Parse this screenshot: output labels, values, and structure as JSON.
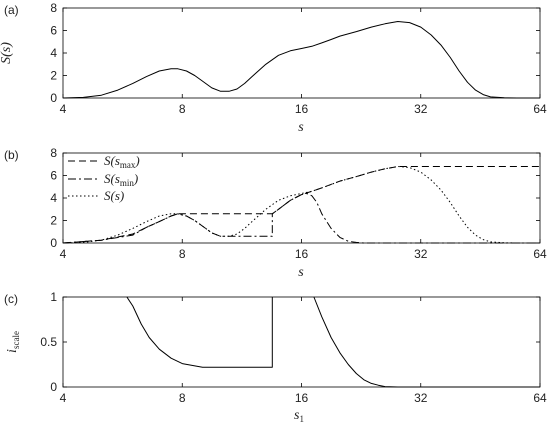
{
  "chart_data": [
    {
      "type": "line",
      "panel_label": "(a)",
      "xscale": "log2",
      "xlim": [
        4,
        64
      ],
      "ylim": [
        0,
        8
      ],
      "xticks": [
        "4",
        "8",
        "16",
        "32",
        "64"
      ],
      "yticks": [
        "0",
        "2",
        "4",
        "6",
        "8"
      ],
      "xlabel": "s",
      "ylabel": "S(s)",
      "series": [
        {
          "style": "solid",
          "x": [
            4,
            4.5,
            5,
            5.5,
            6,
            6.5,
            7,
            7.5,
            7.8,
            8.2,
            8.6,
            9,
            9.5,
            10,
            10.5,
            11,
            11.5,
            12,
            13,
            14,
            15,
            16,
            17,
            18,
            19,
            20,
            22,
            24,
            26,
            28,
            30,
            32,
            34,
            36,
            38,
            40,
            42,
            44,
            46,
            48,
            52,
            56,
            60,
            64
          ],
          "y": [
            0,
            0.05,
            0.25,
            0.7,
            1.3,
            1.9,
            2.4,
            2.6,
            2.6,
            2.4,
            2.0,
            1.5,
            0.9,
            0.6,
            0.6,
            0.8,
            1.3,
            1.9,
            3.0,
            3.8,
            4.2,
            4.4,
            4.6,
            4.9,
            5.2,
            5.5,
            5.9,
            6.3,
            6.6,
            6.8,
            6.7,
            6.3,
            5.6,
            4.7,
            3.6,
            2.4,
            1.4,
            0.7,
            0.3,
            0.1,
            0.02,
            0,
            0,
            0
          ]
        }
      ]
    },
    {
      "type": "line",
      "panel_label": "(b)",
      "xscale": "log2",
      "xlim": [
        4,
        64
      ],
      "ylim": [
        0,
        8
      ],
      "xticks": [
        "4",
        "8",
        "16",
        "32",
        "64"
      ],
      "yticks": [
        "0",
        "2",
        "4",
        "6",
        "8"
      ],
      "xlabel": "s",
      "ylabel": "",
      "legend_position": "top-left",
      "series": [
        {
          "name": "S(s_max)",
          "legend_main": "S(s",
          "legend_sub": "max",
          "style": "dashed",
          "x": [
            4,
            5,
            6,
            6.5,
            7,
            7.5,
            7.8,
            13.5,
            14,
            15,
            16,
            17,
            18,
            20,
            22,
            24,
            26,
            28,
            64
          ],
          "y": [
            0,
            0.25,
            0.8,
            1.4,
            1.9,
            2.4,
            2.6,
            2.6,
            3.0,
            3.8,
            4.3,
            4.6,
            4.9,
            5.5,
            5.9,
            6.3,
            6.6,
            6.8,
            6.8
          ]
        },
        {
          "name": "S(s_min)",
          "legend_main": "S(s",
          "legend_sub": "min",
          "style": "dashdot",
          "x": [
            4,
            5,
            6,
            6.5,
            7,
            7.5,
            7.8,
            8.2,
            8.6,
            9,
            9.5,
            10,
            10.5,
            11,
            11.5,
            12,
            13,
            13.5,
            13.5,
            14,
            15,
            16,
            16.5,
            17,
            17.5,
            18,
            19,
            20,
            21,
            22,
            23,
            24,
            64
          ],
          "y": [
            0,
            0.25,
            0.7,
            1.4,
            1.9,
            2.4,
            2.6,
            2.4,
            2.0,
            1.5,
            0.9,
            0.6,
            0.6,
            0.6,
            0.6,
            0.6,
            0.6,
            0.6,
            2.6,
            3.0,
            3.8,
            4.3,
            4.4,
            4.2,
            3.6,
            2.6,
            1.3,
            0.5,
            0.15,
            0.05,
            0,
            0,
            0
          ]
        },
        {
          "name": "S(s)",
          "legend_main": "S(s)",
          "legend_sub": "",
          "style": "dotted",
          "x": [
            4,
            4.5,
            5,
            5.5,
            6,
            6.5,
            7,
            7.5,
            7.8,
            8.2,
            8.6,
            9,
            9.5,
            10,
            10.5,
            11,
            11.5,
            12,
            13,
            14,
            15,
            16,
            17,
            18,
            19,
            20,
            22,
            24,
            26,
            28,
            30,
            32,
            34,
            36,
            38,
            40,
            42,
            44,
            46,
            48,
            52,
            56,
            60,
            64
          ],
          "y": [
            0,
            0.05,
            0.25,
            0.7,
            1.3,
            1.9,
            2.4,
            2.6,
            2.6,
            2.4,
            2.0,
            1.5,
            0.9,
            0.6,
            0.6,
            0.8,
            1.3,
            1.9,
            3.0,
            3.8,
            4.2,
            4.4,
            4.6,
            4.9,
            5.2,
            5.5,
            5.9,
            6.3,
            6.6,
            6.8,
            6.7,
            6.3,
            5.6,
            4.7,
            3.6,
            2.4,
            1.4,
            0.7,
            0.3,
            0.1,
            0.02,
            0,
            0,
            0
          ]
        }
      ]
    },
    {
      "type": "line",
      "panel_label": "(c)",
      "xscale": "log2",
      "xlim": [
        4,
        64
      ],
      "ylim": [
        0,
        1
      ],
      "xticks": [
        "4",
        "8",
        "16",
        "32",
        "64"
      ],
      "yticks": [
        "0",
        "0.5",
        "1"
      ],
      "xlabel_main": "s",
      "xlabel_sub": "1",
      "ylabel_main": "i",
      "ylabel_sub": "scale",
      "series": [
        {
          "style": "solid",
          "x": [
            5.8,
            6.0,
            6.3,
            6.6,
            7.0,
            7.5,
            8.0,
            9.0,
            10.0,
            11.0,
            12.0,
            13.5,
            13.5
          ],
          "y": [
            1.0,
            0.9,
            0.7,
            0.55,
            0.42,
            0.32,
            0.26,
            0.22,
            0.22,
            0.22,
            0.22,
            0.22,
            1.0
          ]
        },
        {
          "style": "solid",
          "x": [
            17.2,
            18,
            19,
            20,
            21,
            22,
            23,
            24,
            25,
            26,
            28,
            32,
            40,
            64
          ],
          "y": [
            1.0,
            0.78,
            0.55,
            0.38,
            0.25,
            0.15,
            0.08,
            0.04,
            0.02,
            0.005,
            0,
            0,
            0,
            0
          ]
        }
      ]
    }
  ]
}
